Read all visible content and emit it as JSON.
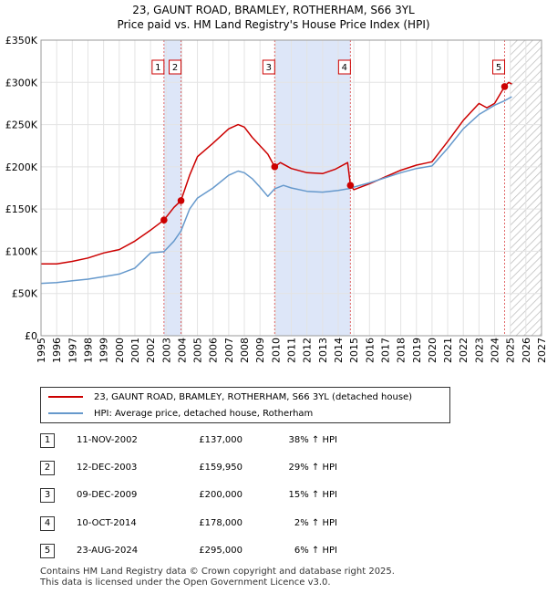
{
  "title_line1": "23, GAUNT ROAD, BRAMLEY, ROTHERHAM, S66 3YL",
  "title_line2": "Price paid vs. HM Land Registry's House Price Index (HPI)",
  "colors": {
    "property": "#cc0000",
    "hpi": "#6699cc",
    "band": "#dde6f8",
    "marker": "#e06666"
  },
  "chart_data": {
    "type": "line",
    "xlim": [
      1995,
      2027
    ],
    "ylim": [
      0,
      350000
    ],
    "x_ticks": [
      1995,
      1996,
      1997,
      1998,
      1999,
      2000,
      2001,
      2002,
      2003,
      2004,
      2005,
      2006,
      2007,
      2008,
      2009,
      2010,
      2011,
      2012,
      2013,
      2014,
      2015,
      2016,
      2017,
      2018,
      2019,
      2020,
      2021,
      2022,
      2023,
      2024,
      2025,
      2026,
      2027
    ],
    "y_ticks": [
      0,
      50000,
      100000,
      150000,
      200000,
      250000,
      300000,
      350000
    ],
    "y_tick_labels": [
      "£0",
      "£50K",
      "£100K",
      "£150K",
      "£200K",
      "£250K",
      "£300K",
      "£350K"
    ],
    "shaded_ranges": [
      [
        2002.86,
        2003.95
      ],
      [
        2009.94,
        2014.78
      ]
    ],
    "forecast_start": 2025.0,
    "series": [
      {
        "name": "property",
        "points": [
          [
            1995,
            85000
          ],
          [
            1996,
            85000
          ],
          [
            1997,
            88000
          ],
          [
            1998,
            92000
          ],
          [
            1999,
            98000
          ],
          [
            2000,
            102000
          ],
          [
            2001,
            112000
          ],
          [
            2002,
            125000
          ],
          [
            2002.86,
            137000
          ],
          [
            2003.5,
            152000
          ],
          [
            2003.95,
            159950
          ],
          [
            2004.5,
            190000
          ],
          [
            2005,
            212000
          ],
          [
            2006,
            228000
          ],
          [
            2007,
            245000
          ],
          [
            2007.6,
            250000
          ],
          [
            2008,
            247000
          ],
          [
            2008.5,
            235000
          ],
          [
            2009,
            225000
          ],
          [
            2009.5,
            215000
          ],
          [
            2009.94,
            200000
          ],
          [
            2010.3,
            205000
          ],
          [
            2011,
            198000
          ],
          [
            2012,
            193000
          ],
          [
            2013,
            192000
          ],
          [
            2013.8,
            197000
          ],
          [
            2014.6,
            205000
          ],
          [
            2014.78,
            178000
          ],
          [
            2015,
            173000
          ],
          [
            2016,
            180000
          ],
          [
            2017,
            188000
          ],
          [
            2018,
            196000
          ],
          [
            2019,
            202000
          ],
          [
            2019.5,
            204000
          ],
          [
            2020,
            206000
          ],
          [
            2021,
            230000
          ],
          [
            2022,
            255000
          ],
          [
            2023,
            275000
          ],
          [
            2023.5,
            270000
          ],
          [
            2024,
            275000
          ],
          [
            2024.64,
            295000
          ],
          [
            2024.9,
            300000
          ],
          [
            2025.1,
            298000
          ]
        ]
      },
      {
        "name": "hpi",
        "points": [
          [
            1995,
            62000
          ],
          [
            1996,
            63000
          ],
          [
            1997,
            65000
          ],
          [
            1998,
            67000
          ],
          [
            1999,
            70000
          ],
          [
            2000,
            73000
          ],
          [
            2001,
            80000
          ],
          [
            2002,
            98000
          ],
          [
            2002.86,
            99500
          ],
          [
            2003.5,
            112000
          ],
          [
            2003.95,
            124000
          ],
          [
            2004.5,
            150000
          ],
          [
            2005,
            163000
          ],
          [
            2006,
            175000
          ],
          [
            2007,
            190000
          ],
          [
            2007.6,
            195000
          ],
          [
            2008,
            193000
          ],
          [
            2008.5,
            186000
          ],
          [
            2009,
            176000
          ],
          [
            2009.5,
            165000
          ],
          [
            2009.94,
            174000
          ],
          [
            2010.5,
            178000
          ],
          [
            2011,
            175000
          ],
          [
            2012,
            171000
          ],
          [
            2013,
            170000
          ],
          [
            2014,
            172000
          ],
          [
            2014.78,
            174500
          ],
          [
            2015,
            176000
          ],
          [
            2016,
            181000
          ],
          [
            2017,
            187000
          ],
          [
            2018,
            193000
          ],
          [
            2019,
            198000
          ],
          [
            2020,
            201000
          ],
          [
            2021,
            222000
          ],
          [
            2022,
            245000
          ],
          [
            2023,
            262000
          ],
          [
            2024,
            273000
          ],
          [
            2024.64,
            278300
          ],
          [
            2025.1,
            283000
          ]
        ]
      }
    ],
    "sales": [
      {
        "n": "1",
        "x": 2002.86,
        "y": 137000
      },
      {
        "n": "2",
        "x": 2003.95,
        "y": 159950
      },
      {
        "n": "3",
        "x": 2009.94,
        "y": 200000
      },
      {
        "n": "4",
        "x": 2014.78,
        "y": 178000
      },
      {
        "n": "5",
        "x": 2024.64,
        "y": 295000
      }
    ]
  },
  "legend": {
    "property": "23, GAUNT ROAD, BRAMLEY, ROTHERHAM, S66 3YL (detached house)",
    "hpi": "HPI: Average price, detached house, Rotherham"
  },
  "transactions": [
    {
      "n": "1",
      "date": "11-NOV-2002",
      "price": "£137,000",
      "hpi": "38% ↑ HPI"
    },
    {
      "n": "2",
      "date": "12-DEC-2003",
      "price": "£159,950",
      "hpi": "29% ↑ HPI"
    },
    {
      "n": "3",
      "date": "09-DEC-2009",
      "price": "£200,000",
      "hpi": "15% ↑ HPI"
    },
    {
      "n": "4",
      "date": "10-OCT-2014",
      "price": "£178,000",
      "hpi": "2% ↑ HPI"
    },
    {
      "n": "5",
      "date": "23-AUG-2024",
      "price": "£295,000",
      "hpi": "6% ↑ HPI"
    }
  ],
  "footer": {
    "line1": "Contains HM Land Registry data © Crown copyright and database right 2025.",
    "line2": "This data is licensed under the Open Government Licence v3.0."
  }
}
